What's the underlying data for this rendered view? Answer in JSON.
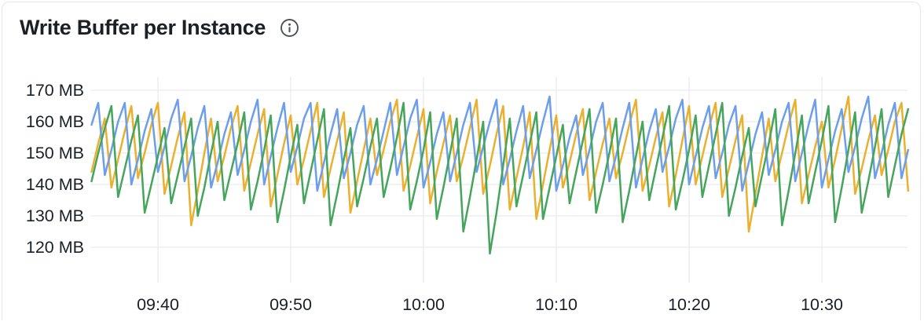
{
  "card": {
    "title": "Write Buffer per Instance"
  },
  "chart_data": {
    "type": "line",
    "title": "Write Buffer per Instance",
    "xlabel": "",
    "ylabel": "",
    "unit": "MB",
    "grid": true,
    "legend": "none",
    "ylim": [
      110,
      174
    ],
    "y_ticks": [
      {
        "label": "170 MB",
        "value": 170
      },
      {
        "label": "160 MB",
        "value": 160
      },
      {
        "label": "150 MB",
        "value": 150
      },
      {
        "label": "140 MB",
        "value": 140
      },
      {
        "label": "130 MB",
        "value": 130
      },
      {
        "label": "120 MB",
        "value": 120
      }
    ],
    "x_ticks": [
      {
        "label": "09:40",
        "t_min": 5
      },
      {
        "label": "09:50",
        "t_min": 15
      },
      {
        "label": "10:00",
        "t_min": 25
      },
      {
        "label": "10:10",
        "t_min": 35
      },
      {
        "label": "10:20",
        "t_min": 45
      },
      {
        "label": "10:30",
        "t_min": 55
      }
    ],
    "x_start_label": "09:35",
    "step_seconds": 30,
    "series": [
      {
        "name": "series-1",
        "color": "#eab02e",
        "values": [
          144,
          153,
          161,
          139,
          148,
          157,
          165,
          142,
          150,
          159,
          166,
          137,
          146,
          155,
          163,
          127,
          138,
          150,
          161,
          141,
          149,
          158,
          165,
          138,
          147,
          156,
          164,
          133,
          143,
          153,
          162,
          140,
          148,
          157,
          166,
          136,
          145,
          154,
          163,
          131,
          141,
          151,
          161,
          143,
          151,
          160,
          167,
          138,
          146,
          155,
          164,
          134,
          144,
          153,
          162,
          141,
          149,
          158,
          167,
          137,
          146,
          156,
          165,
          132,
          142,
          152,
          163,
          129,
          140,
          151,
          162,
          139,
          147,
          156,
          164,
          135,
          144,
          153,
          161,
          142,
          150,
          159,
          167,
          138,
          146,
          155,
          163,
          133,
          143,
          154,
          165,
          140,
          149,
          158,
          166,
          136,
          145,
          154,
          162,
          125,
          137,
          149,
          161,
          141,
          150,
          159,
          167,
          134,
          143,
          152,
          160,
          139,
          148,
          158,
          168,
          137,
          145,
          154,
          162,
          143,
          151,
          160,
          166,
          138
        ]
      },
      {
        "name": "series-2",
        "color": "#6d9eea",
        "values": [
          159,
          166,
          143,
          151,
          160,
          166,
          140,
          148,
          157,
          164,
          144,
          152,
          161,
          167,
          141,
          149,
          158,
          165,
          139,
          147,
          156,
          163,
          143,
          151,
          160,
          167,
          140,
          149,
          158,
          166,
          144,
          152,
          161,
          166,
          138,
          147,
          156,
          164,
          142,
          150,
          159,
          165,
          140,
          148,
          157,
          166,
          143,
          152,
          161,
          167,
          139,
          147,
          156,
          163,
          141,
          150,
          159,
          166,
          144,
          152,
          160,
          167,
          140,
          148,
          157,
          165,
          142,
          151,
          160,
          168,
          138,
          146,
          155,
          162,
          143,
          151,
          160,
          166,
          141,
          149,
          158,
          166,
          139,
          148,
          157,
          164,
          144,
          152,
          161,
          167,
          140,
          149,
          158,
          165,
          142,
          150,
          159,
          165,
          138,
          147,
          156,
          163,
          143,
          151,
          160,
          166,
          141,
          150,
          159,
          167,
          139,
          148,
          157,
          164,
          144,
          152,
          161,
          168,
          142,
          150,
          159,
          166,
          142,
          151
        ]
      },
      {
        "name": "series-3",
        "color": "#45a55c",
        "values": [
          141,
          150,
          158,
          165,
          136,
          145,
          154,
          162,
          131,
          140,
          149,
          158,
          134,
          143,
          152,
          161,
          130,
          139,
          150,
          160,
          135,
          144,
          153,
          163,
          132,
          141,
          151,
          162,
          128,
          138,
          149,
          159,
          134,
          144,
          154,
          164,
          127,
          137,
          148,
          158,
          133,
          142,
          152,
          161,
          136,
          145,
          155,
          166,
          132,
          141,
          151,
          163,
          129,
          139,
          150,
          161,
          125,
          136,
          148,
          160,
          118,
          131,
          146,
          161,
          133,
          143,
          153,
          163,
          129,
          139,
          149,
          159,
          134,
          144,
          154,
          164,
          131,
          140,
          150,
          161,
          128,
          138,
          149,
          160,
          135,
          145,
          155,
          165,
          132,
          141,
          151,
          162,
          136,
          146,
          156,
          166,
          130,
          139,
          149,
          158,
          133,
          143,
          153,
          164,
          127,
          138,
          150,
          162,
          134,
          144,
          154,
          165,
          128,
          139,
          151,
          163,
          131,
          141,
          152,
          164,
          136,
          146,
          156,
          164
        ]
      }
    ]
  }
}
